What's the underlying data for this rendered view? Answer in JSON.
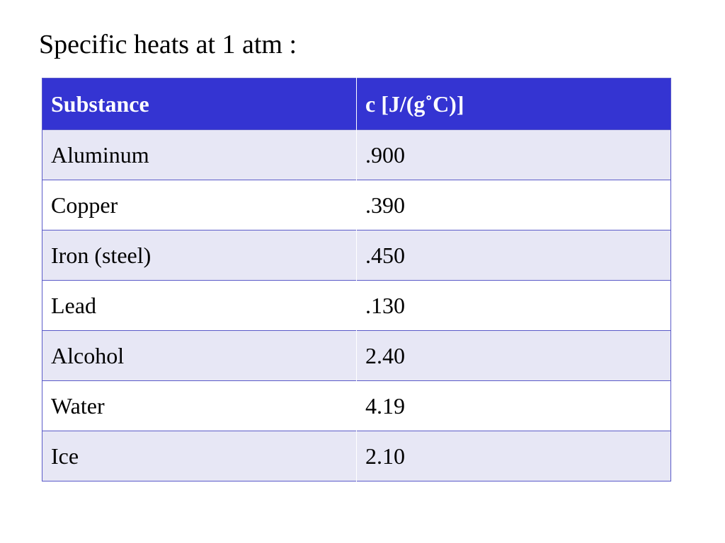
{
  "title": "Specific heats at 1 atm :",
  "table": {
    "header": [
      "Substance",
      "c [J/(g˚C)]"
    ],
    "rows": [
      [
        "Aluminum",
        ".900"
      ],
      [
        "Copper",
        ".390"
      ],
      [
        "Iron (steel)",
        ".450"
      ],
      [
        "Lead",
        ".130"
      ],
      [
        "Alcohol",
        "2.40"
      ],
      [
        "Water",
        "4.19"
      ],
      [
        "Ice",
        "2.10"
      ]
    ]
  }
}
